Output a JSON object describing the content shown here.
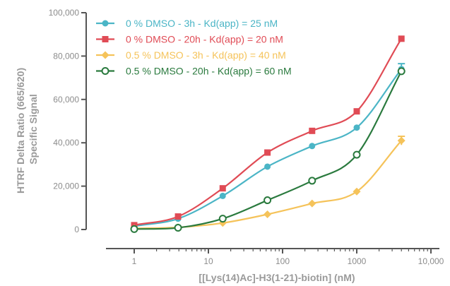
{
  "chart_data": {
    "type": "scatter",
    "x_scale": "log",
    "xlim": [
      0.5,
      10000
    ],
    "ylim": [
      0,
      100000
    ],
    "x_ticks": [
      1,
      10,
      100,
      1000,
      10000
    ],
    "x_tick_labels": [
      "1",
      "10",
      "100",
      "1000",
      "10,000"
    ],
    "y_ticks": [
      0,
      20000,
      40000,
      60000,
      80000,
      100000
    ],
    "y_tick_labels": [
      "0",
      "20,000",
      "40,000",
      "60,000",
      "80,000",
      "100,000"
    ],
    "xlabel": "[[Lys(14)Ac]-H3(1-21)-biotin] (nM)",
    "ylabel_lines": [
      "HTRF Delta Ratio (665/620)",
      "Specific Signal"
    ],
    "legend_position": "top-left",
    "grid": false,
    "series": [
      {
        "name": "0 % DMSO - 3h - Kd(app) = 25 nM",
        "color": "#4bb5c6",
        "marker": "circle",
        "x": [
          1,
          3.9,
          15.6,
          62.5,
          250,
          1000,
          4000
        ],
        "y": [
          1500,
          5000,
          15500,
          29000,
          38500,
          47000,
          74000
        ],
        "error": [
          0,
          0,
          0,
          0,
          0,
          0,
          2500
        ]
      },
      {
        "name": "0 % DMSO - 20h - Kd(app) = 20 nM",
        "color": "#e04b55",
        "marker": "square",
        "x": [
          1,
          3.9,
          15.6,
          62.5,
          250,
          1000,
          4000
        ],
        "y": [
          2000,
          6000,
          19000,
          35500,
          45500,
          54500,
          88000
        ],
        "error": [
          0,
          0,
          0,
          0,
          0,
          0,
          0
        ]
      },
      {
        "name": "0.5 % DMSO - 3h - Kd(app) = 40 nM",
        "color": "#f5c35a",
        "marker": "diamond",
        "x": [
          1,
          3.9,
          15.6,
          62.5,
          250,
          1000,
          4000
        ],
        "y": [
          500,
          1000,
          3000,
          7000,
          12000,
          17500,
          41000
        ],
        "error": [
          0,
          0,
          0,
          0,
          0,
          0,
          2000
        ]
      },
      {
        "name": "0.5 % DMSO - 20h - Kd(app) = 60 nM",
        "color": "#2a7a3e",
        "marker": "open-circle",
        "x": [
          1,
          3.9,
          15.6,
          62.5,
          250,
          1000,
          4000
        ],
        "y": [
          200,
          800,
          5000,
          13500,
          22500,
          34500,
          73000
        ],
        "error": [
          0,
          0,
          0,
          0,
          0,
          0,
          0
        ]
      }
    ]
  }
}
